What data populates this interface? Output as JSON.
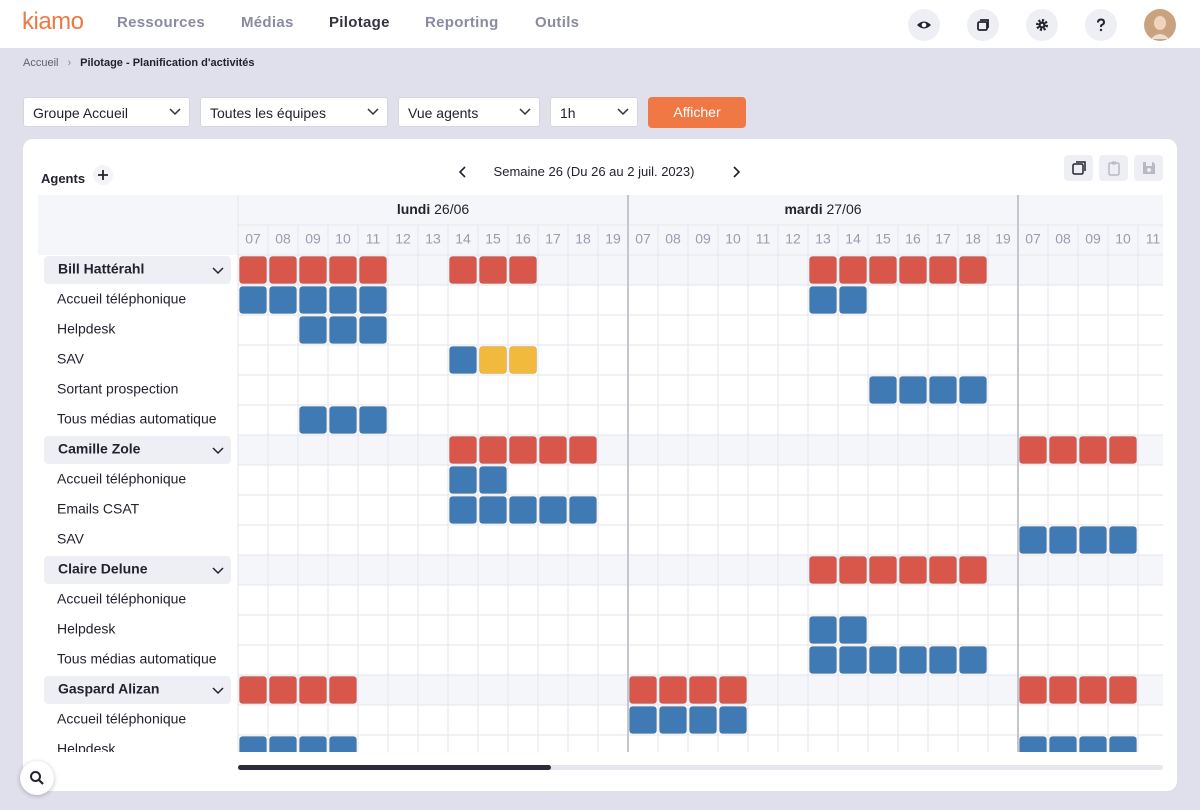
{
  "header": {
    "logo": "kiamo",
    "nav": [
      "Ressources",
      "Médias",
      "Pilotage",
      "Reporting",
      "Outils"
    ],
    "active_nav": 2
  },
  "breadcrumb": [
    "Accueil",
    "Pilotage - Planification d'activités"
  ],
  "filters": [
    "Groupe Accueil",
    "Toutes les équipes",
    "Vue agents",
    "1h"
  ],
  "button": "Afficher",
  "planning": {
    "agents_label": "Agents",
    "week": "Semaine 26 (Du 26 au 2 juil. 2023)",
    "colors": {
      "red": "#d9574a",
      "blue": "#3f7ab4",
      "yellow": "#f1ba3c"
    },
    "days": [
      {
        "name": "lundi",
        "date": "26/06",
        "hours": [
          "07",
          "08",
          "09",
          "10",
          "11",
          "12",
          "13",
          "14",
          "15",
          "16",
          "17",
          "18",
          "19"
        ]
      },
      {
        "name": "mardi",
        "date": "27/06",
        "hours": [
          "07",
          "08",
          "09",
          "10",
          "11",
          "12",
          "13",
          "14",
          "15",
          "16",
          "17",
          "18",
          "19"
        ]
      },
      {
        "hours": [
          "07",
          "08",
          "09",
          "10",
          "11"
        ]
      }
    ],
    "rows": [
      {
        "type": "agent",
        "label": "Bill Hattérahl",
        "blocks": [
          {
            "day": 0,
            "from": 7,
            "to": 11,
            "color": "red"
          },
          {
            "day": 0,
            "from": 14,
            "to": 16,
            "color": "red"
          },
          {
            "day": 1,
            "from": 13,
            "to": 18,
            "color": "red"
          }
        ]
      },
      {
        "type": "activity",
        "label": "Accueil téléphonique",
        "blocks": [
          {
            "day": 0,
            "from": 7,
            "to": 11,
            "color": "blue"
          },
          {
            "day": 1,
            "from": 13,
            "to": 14,
            "color": "blue"
          }
        ]
      },
      {
        "type": "activity",
        "label": "Helpdesk",
        "blocks": [
          {
            "day": 0,
            "from": 9,
            "to": 11,
            "color": "blue"
          }
        ]
      },
      {
        "type": "activity",
        "label": "SAV",
        "blocks": [
          {
            "day": 0,
            "from": 14,
            "to": 14,
            "color": "blue"
          },
          {
            "day": 0,
            "from": 15,
            "to": 16,
            "color": "yellow"
          }
        ]
      },
      {
        "type": "activity",
        "label": "Sortant prospection",
        "blocks": [
          {
            "day": 1,
            "from": 15,
            "to": 18,
            "color": "blue"
          }
        ]
      },
      {
        "type": "activity",
        "label": "Tous médias automatique",
        "blocks": [
          {
            "day": 0,
            "from": 9,
            "to": 11,
            "color": "blue"
          }
        ]
      },
      {
        "type": "agent",
        "label": "Camille Zole",
        "blocks": [
          {
            "day": 0,
            "from": 14,
            "to": 18,
            "color": "red"
          },
          {
            "day": 2,
            "from": 7,
            "to": 10,
            "color": "red"
          }
        ]
      },
      {
        "type": "activity",
        "label": "Accueil téléphonique",
        "blocks": [
          {
            "day": 0,
            "from": 14,
            "to": 15,
            "color": "blue"
          }
        ]
      },
      {
        "type": "activity",
        "label": "Emails CSAT",
        "blocks": [
          {
            "day": 0,
            "from": 14,
            "to": 18,
            "color": "blue"
          }
        ]
      },
      {
        "type": "activity",
        "label": "SAV",
        "blocks": [
          {
            "day": 2,
            "from": 7,
            "to": 10,
            "color": "blue"
          }
        ]
      },
      {
        "type": "agent",
        "label": "Claire Delune",
        "blocks": [
          {
            "day": 1,
            "from": 13,
            "to": 18,
            "color": "red"
          }
        ]
      },
      {
        "type": "activity",
        "label": "Accueil téléphonique",
        "blocks": []
      },
      {
        "type": "activity",
        "label": "Helpdesk",
        "blocks": [
          {
            "day": 1,
            "from": 13,
            "to": 14,
            "color": "blue"
          }
        ]
      },
      {
        "type": "activity",
        "label": "Tous médias automatique",
        "blocks": [
          {
            "day": 1,
            "from": 13,
            "to": 18,
            "color": "blue"
          }
        ]
      },
      {
        "type": "agent",
        "label": "Gaspard Alizan",
        "blocks": [
          {
            "day": 0,
            "from": 7,
            "to": 10,
            "color": "red"
          },
          {
            "day": 1,
            "from": 7,
            "to": 10,
            "color": "red"
          },
          {
            "day": 2,
            "from": 7,
            "to": 10,
            "color": "red"
          }
        ]
      },
      {
        "type": "activity",
        "label": "Accueil téléphonique",
        "blocks": [
          {
            "day": 1,
            "from": 7,
            "to": 10,
            "color": "blue"
          }
        ]
      },
      {
        "type": "activity",
        "label": "Helpdesk",
        "blocks": [
          {
            "day": 0,
            "from": 7,
            "to": 10,
            "color": "blue"
          },
          {
            "day": 2,
            "from": 7,
            "to": 10,
            "color": "blue"
          }
        ]
      }
    ]
  }
}
